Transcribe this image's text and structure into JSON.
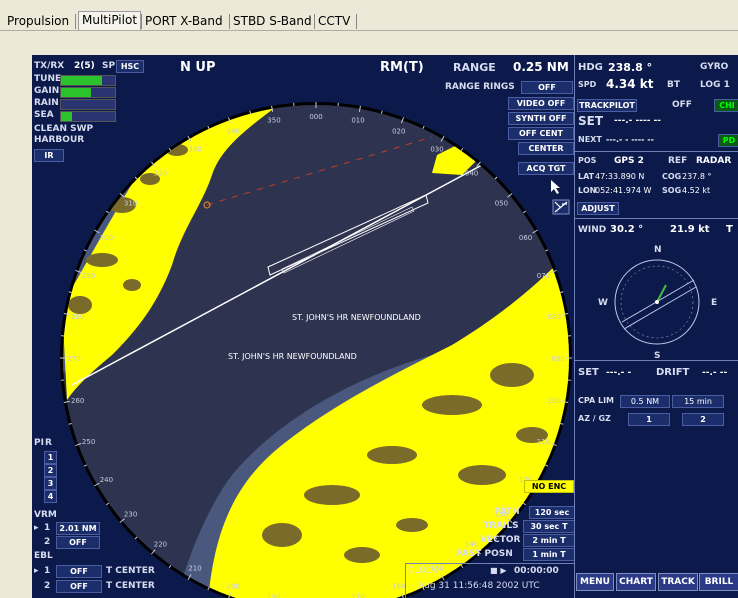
{
  "tabs": [
    {
      "label": "Propulsion",
      "active": false
    },
    {
      "label": "MultiPilot",
      "active": true
    },
    {
      "label": "PORT X-Band",
      "active": false
    },
    {
      "label": "STBD S-Band",
      "active": false
    },
    {
      "label": "CCTV",
      "active": false
    }
  ],
  "left_panel": {
    "txrx_label": "TX/RX",
    "txrx_value": "2(5)",
    "sp_label": "SP",
    "hsc_label": "HSC",
    "controls": [
      {
        "label": "TUNE",
        "level": 0.75
      },
      {
        "label": "GAIN",
        "level": 0.55
      },
      {
        "label": "RAIN",
        "level": 0
      },
      {
        "label": "SEA",
        "level": 0.2
      }
    ],
    "clean_swp": "CLEAN SWP",
    "harbour": "HARBOUR",
    "ir": "IR",
    "pi_label": "PI",
    "pi_r": "R",
    "pi_items": [
      "1",
      "2",
      "3",
      "4"
    ],
    "vrm_label": "VRM",
    "vrm_rows": [
      {
        "index": "1",
        "value": "2.01 NM"
      },
      {
        "index": "2",
        "value": "OFF"
      }
    ],
    "ebl_label": "EBL",
    "ebl_rows": [
      {
        "index": "1",
        "value": "OFF",
        "mode": "T CENTER"
      },
      {
        "index": "2",
        "value": "OFF",
        "mode": "T CENTER"
      }
    ]
  },
  "top_bar": {
    "orientation": "N UP",
    "motion": "RM(T)",
    "range_label": "RANGE",
    "range_value": "0.25 NM"
  },
  "radar_buttons": {
    "range_rings_label": "RANGE RINGS",
    "range_rings_value": "OFF",
    "video": "VIDEO OFF",
    "synth": "SYNTH OFF",
    "off_cent": "OFF CENT",
    "center": "CENTER",
    "acq_tgt": "ACQ TGT",
    "no_enc": "NO ENC"
  },
  "chart_labels": [
    "ST. JOHN'S HR NEWFOUNDLAND",
    "ST. JOHN'S HR NEWFOUNDLAND"
  ],
  "bearing_ticks": [
    "310",
    "320",
    "330",
    "340",
    "350",
    "000",
    "010",
    "020",
    "030",
    "040",
    "050",
    "060",
    "070",
    "080",
    "090",
    "100",
    "110",
    "120",
    "130",
    "140",
    "150",
    "160",
    "170",
    "180",
    "190",
    "200",
    "210",
    "220",
    "230",
    "240",
    "250",
    "260",
    "270",
    "280",
    "290",
    "300"
  ],
  "bottom_center": {
    "path_label": "PATH",
    "path_value": "120 sec",
    "trails_label": "TRAILS",
    "trails_value": "30 sec T",
    "vector_label": "VECTOR",
    "vector_value": "2 min T",
    "past_posn_label": "PAST POSN",
    "past_posn_value": "1 min T",
    "clock_label": "CLOCK",
    "clock_timer": "00:00:00",
    "clock_datetime": "Aug 31 11:56:48 2002 UTC"
  },
  "right_panel": {
    "hdg_label": "HDG",
    "hdg_value": "238.8 °",
    "hdg_source": "GYRO",
    "spd_label": "SPD",
    "spd_value": "4.34 kt",
    "spd_mode": "BT",
    "spd_source": "LOG 1",
    "trackpilot_label": "TRACKPILOT",
    "trackpilot_value": "OFF",
    "trackpilot_btn": "CHI",
    "set_label": "SET",
    "set_value": "---.- ---- --",
    "next_label": "NEXT",
    "next_value": "---.- -  ---- --",
    "pd_btn": "PD",
    "pos_label": "POS",
    "pos_source": "GPS 2",
    "ref_label": "REF",
    "ref_value": "RADAR",
    "lat_label": "LAT",
    "lat_value": "47:33.890 N",
    "cog_label": "COG",
    "cog_value": "237.8 °",
    "lon_label": "LON",
    "lon_value": "052:41.974 W",
    "sog_label": "SOG",
    "sog_value": "4.52 kt",
    "adjust": "ADJUST",
    "wind_label": "WIND",
    "wind_dir": "30.2 °",
    "wind_speed": "21.9 kt",
    "wind_mode": "T",
    "compass": {
      "n": "N",
      "s": "S",
      "e": "E",
      "w": "W"
    },
    "set2_label": "SET",
    "set2_value": "---.- -",
    "drift_label": "DRIFT",
    "drift_value": "--.- --",
    "cpa_label": "CPA LIM",
    "cpa_nm": "0.5 NM",
    "cpa_min": "15 min",
    "azgz_label": "AZ / GZ",
    "az1": "1",
    "az2": "2",
    "buttons": [
      "MENU",
      "CHART",
      "TRACK",
      "BRILL"
    ]
  },
  "colors": {
    "radar_bg": "#0b1a4a",
    "land": "#4b587e",
    "water": "#2e3350",
    "echo": "#ffff00",
    "echo_dark": "#7a6b2a",
    "ring": "#ffffff"
  }
}
